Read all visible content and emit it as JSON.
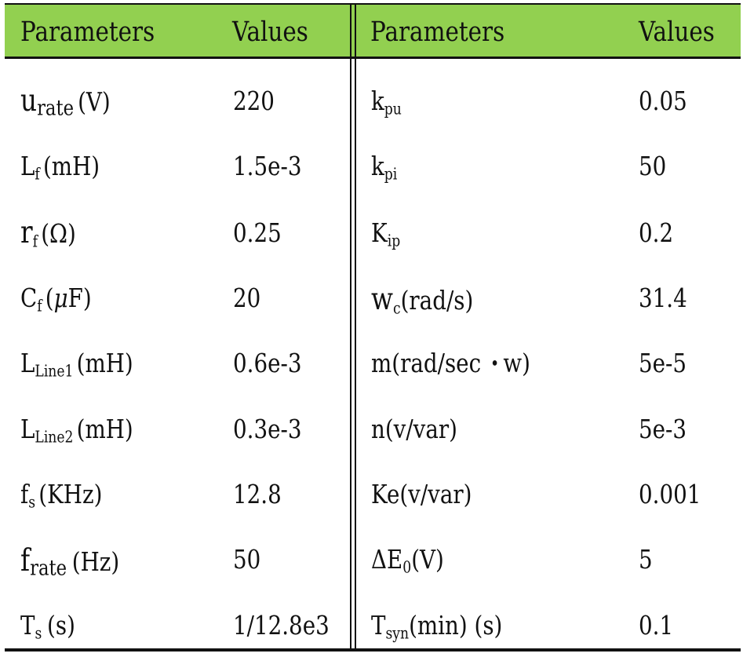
{
  "headers": [
    "Parameters",
    "Values",
    "Parameters",
    "Values"
  ],
  "left_rows": [
    {
      "symbol": "u",
      "sub": "rate",
      "unit": "(V)",
      "value": "220"
    },
    {
      "symbol": "L",
      "sub": "f",
      "unit": "(mH)",
      "value": "1.5e-3"
    },
    {
      "symbol": "r",
      "sub": "f",
      "unit_pre": "(",
      "unit_sym": "Ω",
      "unit_post": ")",
      "value": "0.25"
    },
    {
      "symbol": "C",
      "sub": "f",
      "unit_pre": "(",
      "unit_sym": "μ",
      "unit_post": "F)",
      "value": "20"
    },
    {
      "symbol": "L",
      "sub": "Line1",
      "unit": "(mH)",
      "value": "0.6e-3"
    },
    {
      "symbol": "L",
      "sub": "Line2",
      "unit": "(mH)",
      "value": "0.3e-3"
    },
    {
      "symbol": "f",
      "sub": "s",
      "unit": "(KHz)",
      "value": "12.8"
    },
    {
      "symbol": "f",
      "sub": "rate",
      "unit": "(Hz)",
      "value": "50"
    },
    {
      "symbol": "T",
      "sub": "s",
      "unit": "(s)",
      "value": "1/12.8e3"
    }
  ],
  "right_rows": [
    {
      "symbol": "k",
      "sub": "pu",
      "unit": "",
      "value": "0.05"
    },
    {
      "symbol": "k",
      "sub": "pi",
      "unit": "",
      "value": "50"
    },
    {
      "symbol": "K",
      "sub": "ip",
      "unit": "",
      "value": "0.2"
    },
    {
      "symbol": "w",
      "sub": "c",
      "unit": "(rad/s)",
      "value": "31.4"
    },
    {
      "pre": "m(rad/sec",
      "dot": "•",
      "post": "w)",
      "value": "5e-5"
    },
    {
      "symbol": "n(v/var)",
      "value": "5e-3"
    },
    {
      "symbol": "Ke(v/var)",
      "value": "0.001"
    },
    {
      "symbol": "ΔE",
      "sub": "0",
      "unit": "(V)",
      "value": "5"
    },
    {
      "symbol": "T",
      "sub": "syn",
      "unit": "(min) (s)",
      "value": "0.1"
    }
  ]
}
